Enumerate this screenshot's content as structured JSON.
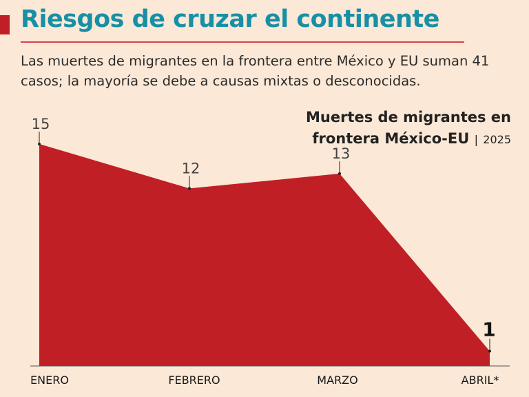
{
  "header": {
    "title": "Riesgos de cruzar el continente",
    "description": "Las muertes de migrantes en la frontera entre México y EU suman 41 casos; la mayoría se debe a causas mixtas o desconocidas."
  },
  "colors": {
    "accent": "#c01f26",
    "title": "#1790a6",
    "background": "#fbe8d6",
    "area": "#c01f26"
  },
  "chart_data": {
    "type": "area",
    "title_line1": "Muertes de migrantes en",
    "title_line2": "frontera México-EU",
    "title_year": "2025",
    "categories": [
      "ENERO",
      "FEBRERO",
      "MARZO",
      "ABRIL*"
    ],
    "values": [
      15,
      12,
      13,
      1
    ],
    "value_labels": [
      "15",
      "12",
      "13",
      "1"
    ],
    "ylim": [
      0,
      17
    ],
    "grid": false,
    "legend": "none"
  }
}
